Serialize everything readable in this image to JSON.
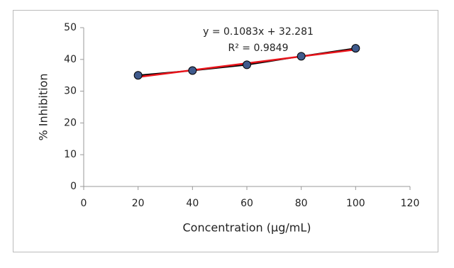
{
  "chart_data": {
    "type": "scatter",
    "x_label": "Concentration (µg/mL)",
    "y_label": "% Inhibition",
    "annotations": [
      "y = 0.1083x + 32.281",
      "R² = 0.9849"
    ],
    "x": [
      20,
      40,
      60,
      80,
      100
    ],
    "series": [
      {
        "color": "#3f5a8c",
        "line_color": "#000000",
        "values": [
          35,
          36.5,
          38.3,
          41,
          43.5
        ]
      }
    ],
    "trendline": {
      "color": "#e8141b",
      "x": [
        20,
        100
      ],
      "values": [
        34.45,
        43.11
      ]
    },
    "xlim": [
      0,
      120
    ],
    "xticks": [
      0,
      20,
      40,
      60,
      80,
      100,
      120
    ],
    "ylim": [
      0,
      50
    ],
    "yticks": [
      0,
      10,
      20,
      30,
      40,
      50
    ],
    "grid": false
  }
}
